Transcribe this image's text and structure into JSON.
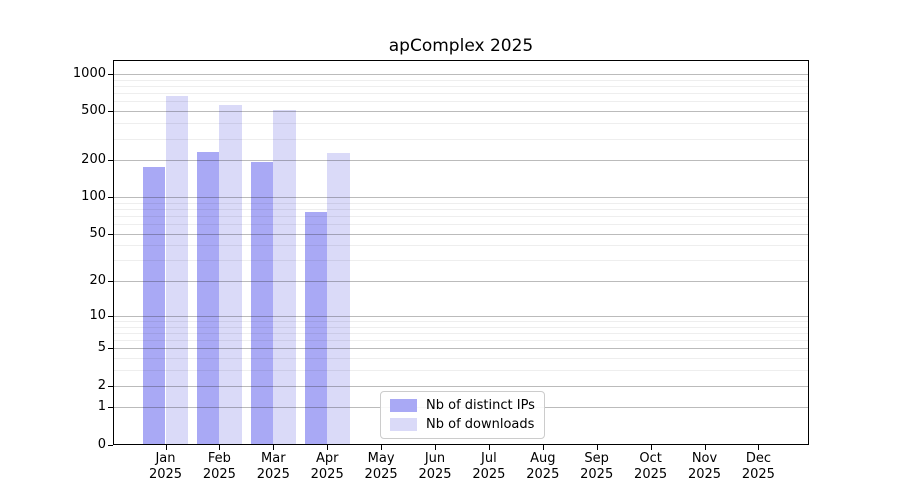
{
  "chart_data": {
    "type": "bar",
    "title": "apComplex 2025",
    "scale": "log1p",
    "ymax": 1300,
    "ylim": [
      0,
      1300
    ],
    "grid": true,
    "legend_position": "bottom-center-inside",
    "categories": [
      "Jan",
      "Feb",
      "Mar",
      "Apr",
      "May",
      "Jun",
      "Jul",
      "Aug",
      "Sep",
      "Oct",
      "Nov",
      "Dec"
    ],
    "year": "2025",
    "yticks": [
      0,
      1,
      2,
      5,
      10,
      20,
      50,
      100,
      200,
      500,
      1000
    ],
    "minor_gridlines": [
      3,
      4,
      6,
      7,
      8,
      9,
      30,
      40,
      60,
      70,
      80,
      90,
      300,
      400,
      600,
      700,
      800,
      900
    ],
    "series": [
      {
        "name": "Nb of distinct IPs",
        "color": "#a9a9f5",
        "values": [
          175,
          235,
          192,
          76,
          0,
          0,
          0,
          0,
          0,
          0,
          0,
          0
        ]
      },
      {
        "name": "Nb of downloads",
        "color": "#dadaf8",
        "values": [
          670,
          560,
          515,
          230,
          0,
          0,
          0,
          0,
          0,
          0,
          0,
          0
        ]
      }
    ]
  }
}
